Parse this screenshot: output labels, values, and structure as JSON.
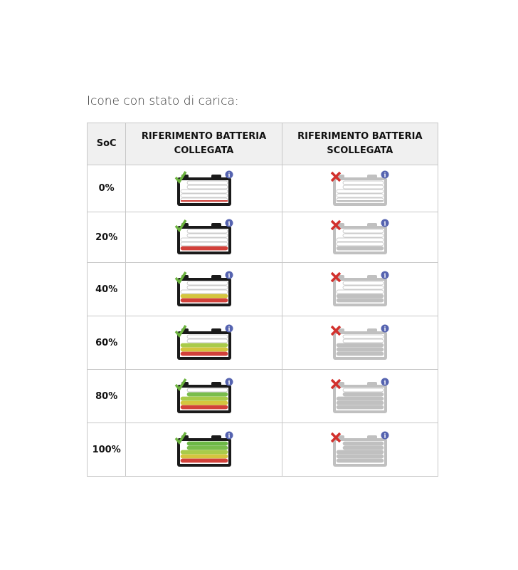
{
  "title": "Icone con stato di carica:",
  "headers": {
    "soc": "SoC",
    "connected": "RIFERIMENTO BATTERIA COLLEGATA",
    "disconnected": "RIFERIMENTO BATTERIA SCOLLEGATA"
  },
  "rows": [
    {
      "soc": "0%",
      "charge_percent": 0
    },
    {
      "soc": "20%",
      "charge_percent": 20
    },
    {
      "soc": "40%",
      "charge_percent": 40
    },
    {
      "soc": "60%",
      "charge_percent": 60
    },
    {
      "soc": "80%",
      "charge_percent": 80
    },
    {
      "soc": "100%",
      "charge_percent": 100
    }
  ],
  "icons": {
    "connected": "battery-check-icon",
    "disconnected": "battery-cross-icon",
    "info": "info-icon"
  },
  "colors": {
    "bar_levels": [
      "#d2403a",
      "#d4c53e",
      "#a9cb4a",
      "#79bd4c",
      "#6cb846"
    ],
    "disconnected_fill": "#c0c0c0",
    "frame": "#1a1a1a",
    "check": "#6cb33f",
    "cross": "#d2302c",
    "info": "#5563b0"
  }
}
